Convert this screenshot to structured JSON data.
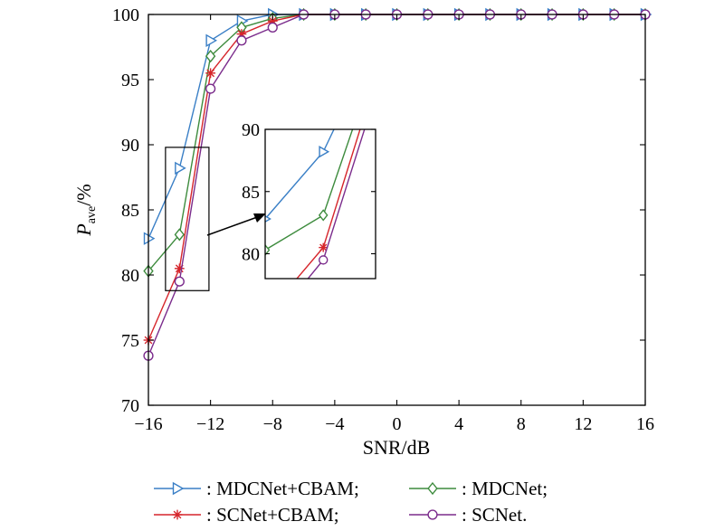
{
  "chart_data": {
    "type": "line",
    "xlabel": "SNR/dB",
    "ylabel_main": "P",
    "ylabel_sub": "ave",
    "ylabel_unit": "/%",
    "xlim": [
      -16,
      16
    ],
    "ylim": [
      70,
      100
    ],
    "xticks": [
      -16,
      -12,
      -8,
      -4,
      0,
      4,
      8,
      12,
      16
    ],
    "xtick_labels": [
      "−16",
      "−12",
      "−8",
      "−4",
      "0",
      "4",
      "8",
      "12",
      "16"
    ],
    "yticks": [
      70,
      75,
      80,
      85,
      90,
      95,
      100
    ],
    "x": [
      -16,
      -14,
      -12,
      -10,
      -8,
      -6,
      -4,
      -2,
      0,
      2,
      4,
      6,
      8,
      10,
      12,
      14,
      16
    ],
    "series": [
      {
        "name": "MDCNet+CBAM",
        "legend_label": ": MDCNet+CBAM;",
        "color": "#3a7fc6",
        "marker": "triangle-right",
        "values": [
          82.8,
          88.2,
          98.0,
          99.5,
          100,
          100,
          100,
          100,
          100,
          100,
          100,
          100,
          100,
          100,
          100,
          100,
          100
        ]
      },
      {
        "name": "MDCNet",
        "legend_label": ": MDCNet;",
        "color": "#3d8b3d",
        "marker": "diamond",
        "values": [
          80.3,
          83.1,
          96.8,
          99.0,
          99.7,
          100,
          100,
          100,
          100,
          100,
          100,
          100,
          100,
          100,
          100,
          100,
          100
        ]
      },
      {
        "name": "SCNet+CBAM",
        "legend_label": ": SCNet+CBAM;",
        "color": "#d6252b",
        "marker": "asterisk",
        "values": [
          75.0,
          80.5,
          95.5,
          98.5,
          99.5,
          100,
          100,
          100,
          100,
          100,
          100,
          100,
          100,
          100,
          100,
          100,
          100
        ]
      },
      {
        "name": "SCNet",
        "legend_label": ": SCNet.",
        "color": "#7b2c8c",
        "marker": "circle",
        "values": [
          73.8,
          79.5,
          94.3,
          98.0,
          99.0,
          100,
          100,
          100,
          100,
          100,
          100,
          100,
          100,
          100,
          100,
          100,
          100
        ]
      }
    ],
    "inset": {
      "xlim": [
        -16,
        -12.2
      ],
      "ylim": [
        78,
        90
      ],
      "yticks": [
        80,
        85,
        90
      ],
      "source_region": {
        "xlim": [
          -14.9,
          -12.1
        ],
        "ylim": [
          78.8,
          89.8
        ]
      }
    },
    "legend_position": "bottom"
  }
}
